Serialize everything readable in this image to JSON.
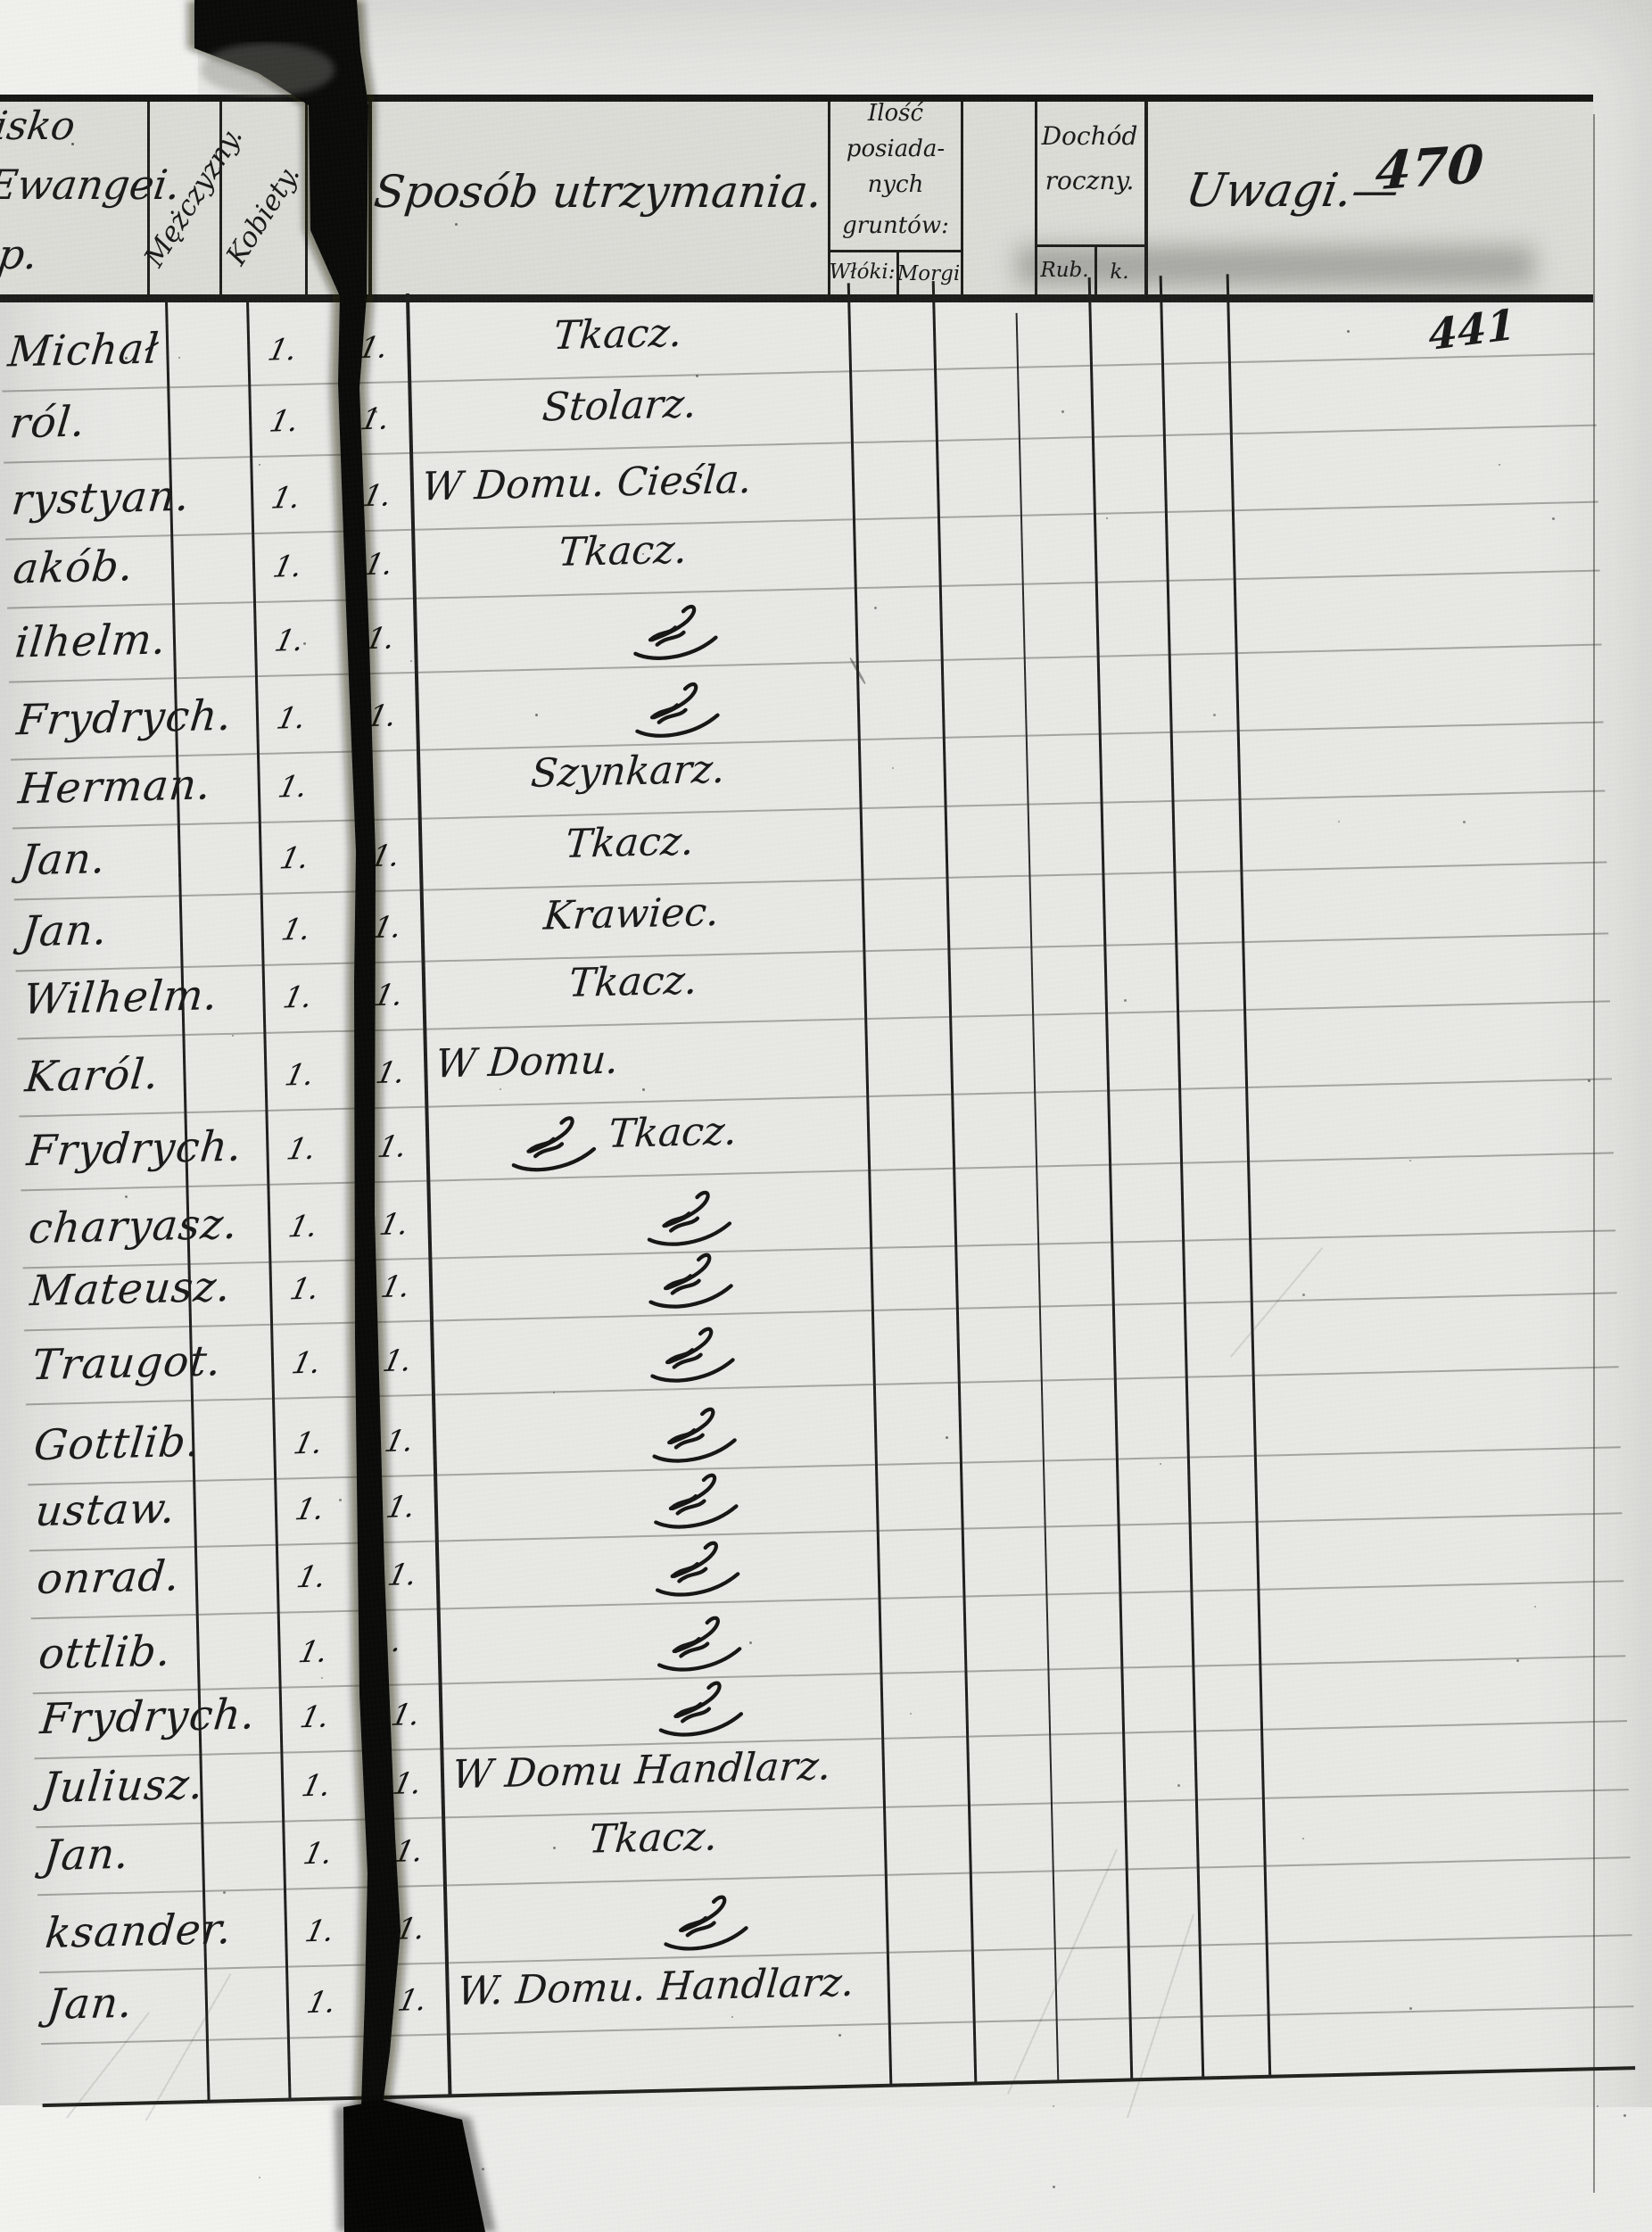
{
  "page": {
    "page_number": "470",
    "entry_number": "441",
    "kind": "scanned handwritten registry ledger",
    "colors": {
      "paper": "#e8e8e5",
      "paper_light": "#f1f1ee",
      "header_paper": "#dcdcd7",
      "ink": "#1a1a1a",
      "gutter_black": "#0a0a0a",
      "faint_rule": "#8a8a84"
    }
  },
  "header": {
    "name_column_fragments": [
      "isko",
      "Ewangei.",
      "p."
    ],
    "col_men": "Mężczyzny.",
    "col_women": "Kobiety.",
    "occupation_title": "Sposób utrzymania.",
    "land_box": {
      "title_lines": [
        "Ilość",
        "posiada-",
        "nych",
        "gruntów:"
      ],
      "sub_columns": [
        "Włóki:",
        "Morgi"
      ]
    },
    "income_box": {
      "title_lines": [
        "Dochód",
        "roczny."
      ],
      "sub_columns": [
        "Rub.",
        "k."
      ]
    },
    "remarks_title": "Uwagi.—"
  },
  "marks": {
    "tally": "1.",
    "faint_dot": "·",
    "ditto_meaning": "ditto (same as above)"
  },
  "rows": [
    {
      "name": "Michał",
      "m": "1.",
      "k": "1.",
      "type": "c",
      "occ": "Tkacz."
    },
    {
      "name": "ról.",
      "m": "1.",
      "k": "1.",
      "type": "c",
      "occ": "Stolarz."
    },
    {
      "name": "rystyan.",
      "m": "1.",
      "k": "1.",
      "type": "w",
      "occ": "W Domu. Cieśla."
    },
    {
      "name": "akób.",
      "m": "1.",
      "k": "1.",
      "type": "c",
      "occ": "Tkacz."
    },
    {
      "name": "ilhelm.",
      "m": "1.",
      "k": "1.",
      "type": "d",
      "occ": ""
    },
    {
      "name": "Frydrych.",
      "m": "1.",
      "k": "1.",
      "type": "d",
      "occ": ""
    },
    {
      "name": "Herman.",
      "m": "1.",
      "k": "",
      "type": "c",
      "occ": "Szynkarz."
    },
    {
      "name": "Jan.",
      "m": "1.",
      "k": "1.",
      "type": "c",
      "occ": "Tkacz."
    },
    {
      "name": "Jan.",
      "m": "1.",
      "k": "1.",
      "type": "c",
      "occ": "Krawiec."
    },
    {
      "name": "Wilhelm.",
      "m": "1.",
      "k": "1.",
      "type": "c",
      "occ": "Tkacz."
    },
    {
      "name": "Karól.",
      "m": "1.",
      "k": "1.",
      "type": "w",
      "occ": "W Domu."
    },
    {
      "name": "Frydrych.",
      "m": "1.",
      "k": "1.",
      "type": "dt",
      "occ": "Tkacz."
    },
    {
      "name": "charyasz.",
      "m": "1.",
      "k": "1.",
      "type": "d",
      "occ": ""
    },
    {
      "name": "Mateusz.",
      "m": "1.",
      "k": "1.",
      "type": "d",
      "occ": ""
    },
    {
      "name": "Traugot.",
      "m": "1.",
      "k": "1.",
      "type": "d",
      "occ": ""
    },
    {
      "name": "Gottlib.",
      "m": "1.",
      "k": "1.",
      "type": "d",
      "occ": ""
    },
    {
      "name": "ustaw.",
      "m": "1.",
      "k": "1.",
      "type": "d",
      "occ": ""
    },
    {
      "name": "onrad.",
      "m": "1.",
      "k": "1.",
      "type": "d",
      "occ": ""
    },
    {
      "name": "ottlib.",
      "m": "1.",
      "k": "·",
      "type": "d",
      "occ": ""
    },
    {
      "name": "Frydrych.",
      "m": "1.",
      "k": "1.",
      "type": "d",
      "occ": ""
    },
    {
      "name": "Juliusz.",
      "m": "1.",
      "k": "1.",
      "type": "w",
      "occ": "W Domu Handlarz."
    },
    {
      "name": "Jan.",
      "m": "1.",
      "k": "1.",
      "type": "c",
      "occ": "Tkacz."
    },
    {
      "name": "ksander.",
      "m": "1.",
      "k": "1.",
      "type": "d",
      "occ": ""
    },
    {
      "name": "Jan.",
      "m": "1.",
      "k": "1.",
      "type": "w",
      "occ": "W. Domu. Handlarz."
    }
  ]
}
